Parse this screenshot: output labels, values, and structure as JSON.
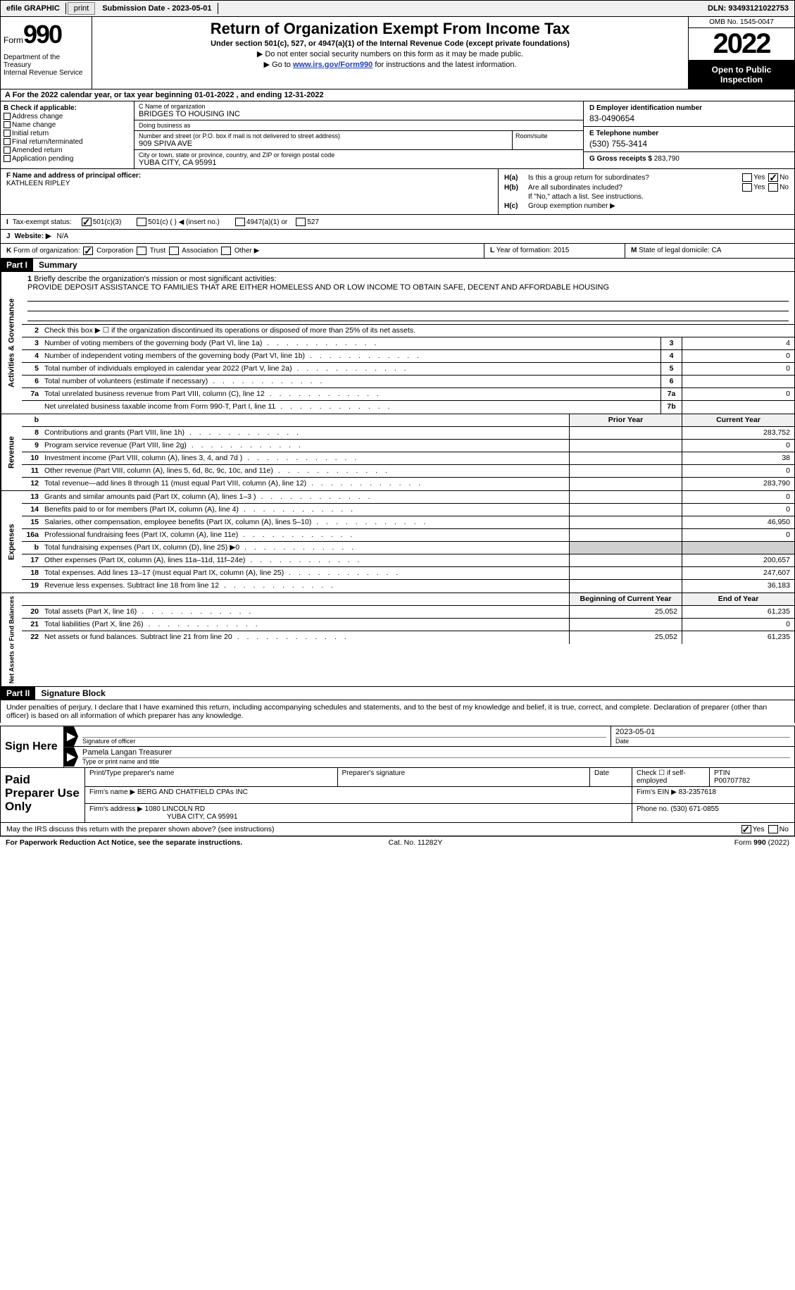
{
  "topbar": {
    "efile": "efile GRAPHIC",
    "print": "print",
    "sub_label": "Submission Date - ",
    "sub_date": "2023-05-01",
    "dln_label": "DLN: ",
    "dln": "93493121022753"
  },
  "header": {
    "form_word": "Form",
    "form_num": "990",
    "dept": "Department of the Treasury\nInternal Revenue Service",
    "title": "Return of Organization Exempt From Income Tax",
    "subtitle": "Under section 501(c), 527, or 4947(a)(1) of the Internal Revenue Code (except private foundations)",
    "line1": "Do not enter social security numbers on this form as it may be made public.",
    "line2_pre": "Go to ",
    "line2_link": "www.irs.gov/Form990",
    "line2_post": " for instructions and the latest information.",
    "omb": "OMB No. 1545-0047",
    "year": "2022",
    "open": "Open to Public Inspection"
  },
  "lineA": {
    "text_pre": "For the 2022 calendar year, or tax year beginning ",
    "begin": "01-01-2022",
    "mid": " , and ending ",
    "end": "12-31-2022"
  },
  "colB": {
    "hdr": "B Check if applicable:",
    "opts": [
      "Address change",
      "Name change",
      "Initial return",
      "Final return/terminated",
      "Amended return",
      "Application pending"
    ]
  },
  "colC": {
    "name_lbl": "C Name of organization",
    "name": "BRIDGES TO HOUSING INC",
    "dba_lbl": "Doing business as",
    "dba": "",
    "street_lbl": "Number and street (or P.O. box if mail is not delivered to street address)",
    "street": "909 SPIVA AVE",
    "room_lbl": "Room/suite",
    "city_lbl": "City or town, state or province, country, and ZIP or foreign postal code",
    "city": "YUBA CITY, CA  95991"
  },
  "colD": {
    "ein_lbl": "D Employer identification number",
    "ein": "83-0490654",
    "tel_lbl": "E Telephone number",
    "tel": "(530) 755-3414",
    "gross_lbl": "G Gross receipts $ ",
    "gross": "283,790"
  },
  "rowF": {
    "lbl": "F Name and address of principal officer:",
    "name": "KATHLEEN RIPLEY"
  },
  "rowH": {
    "a": "Is this a group return for subordinates?",
    "b": "Are all subordinates included?",
    "note": "If \"No,\" attach a list. See instructions.",
    "c": "Group exemption number ▶",
    "yes": "Yes",
    "no": "No"
  },
  "rowI": {
    "lbl": "Tax-exempt status:",
    "o1": "501(c)(3)",
    "o2": "501(c) (  ) ◀ (insert no.)",
    "o3": "4947(a)(1) or",
    "o4": "527"
  },
  "rowJ": {
    "lbl": "Website: ▶",
    "val": "N/A"
  },
  "rowK": {
    "k1": "Form of organization:",
    "opts": [
      "Corporation",
      "Trust",
      "Association",
      "Other ▶"
    ],
    "k2_lbl": "Year of formation: ",
    "k2_val": "2015",
    "k3_lbl": "State of legal domicile: ",
    "k3_val": "CA"
  },
  "part1": {
    "hdr": "Part I",
    "title": "Summary"
  },
  "mission": {
    "num": "1",
    "lbl": "Briefly describe the organization's mission or most significant activities:",
    "text": "PROVIDE DEPOSIT ASSISTANCE TO FAMILIES THAT ARE EITHER HOMELESS AND OR LOW INCOME TO OBTAIN SAFE, DECENT AND AFFORDABLE HOUSING"
  },
  "gov_lines": [
    {
      "n": "2",
      "d": "Check this box ▶ ☐ if the organization discontinued its operations or disposed of more than 25% of its net assets."
    },
    {
      "n": "3",
      "d": "Number of voting members of the governing body (Part VI, line 1a)",
      "box": "3",
      "v": "4"
    },
    {
      "n": "4",
      "d": "Number of independent voting members of the governing body (Part VI, line 1b)",
      "box": "4",
      "v": "0"
    },
    {
      "n": "5",
      "d": "Total number of individuals employed in calendar year 2022 (Part V, line 2a)",
      "box": "5",
      "v": "0"
    },
    {
      "n": "6",
      "d": "Total number of volunteers (estimate if necessary)",
      "box": "6",
      "v": ""
    },
    {
      "n": "7a",
      "d": "Total unrelated business revenue from Part VIII, column (C), line 12",
      "box": "7a",
      "v": "0"
    },
    {
      "n": "",
      "d": "Net unrelated business taxable income from Form 990-T, Part I, line 11",
      "box": "7b",
      "v": ""
    }
  ],
  "py_cy": {
    "py": "Prior Year",
    "cy": "Current Year"
  },
  "rev_lines": [
    {
      "n": "8",
      "d": "Contributions and grants (Part VIII, line 1h)",
      "py": "",
      "cy": "283,752"
    },
    {
      "n": "9",
      "d": "Program service revenue (Part VIII, line 2g)",
      "py": "",
      "cy": "0"
    },
    {
      "n": "10",
      "d": "Investment income (Part VIII, column (A), lines 3, 4, and 7d )",
      "py": "",
      "cy": "38"
    },
    {
      "n": "11",
      "d": "Other revenue (Part VIII, column (A), lines 5, 6d, 8c, 9c, 10c, and 11e)",
      "py": "",
      "cy": "0"
    },
    {
      "n": "12",
      "d": "Total revenue—add lines 8 through 11 (must equal Part VIII, column (A), line 12)",
      "py": "",
      "cy": "283,790"
    }
  ],
  "exp_lines": [
    {
      "n": "13",
      "d": "Grants and similar amounts paid (Part IX, column (A), lines 1–3 )",
      "py": "",
      "cy": "0"
    },
    {
      "n": "14",
      "d": "Benefits paid to or for members (Part IX, column (A), line 4)",
      "py": "",
      "cy": "0"
    },
    {
      "n": "15",
      "d": "Salaries, other compensation, employee benefits (Part IX, column (A), lines 5–10)",
      "py": "",
      "cy": "46,950"
    },
    {
      "n": "16a",
      "d": "Professional fundraising fees (Part IX, column (A), line 11e)",
      "py": "",
      "cy": "0"
    },
    {
      "n": "b",
      "d": "Total fundraising expenses (Part IX, column (D), line 25) ▶0",
      "py": "shade",
      "cy": "shade"
    },
    {
      "n": "17",
      "d": "Other expenses (Part IX, column (A), lines 11a–11d, 11f–24e)",
      "py": "",
      "cy": "200,657"
    },
    {
      "n": "18",
      "d": "Total expenses. Add lines 13–17 (must equal Part IX, column (A), line 25)",
      "py": "",
      "cy": "247,607"
    },
    {
      "n": "19",
      "d": "Revenue less expenses. Subtract line 18 from line 12",
      "py": "",
      "cy": "36,183"
    }
  ],
  "na_hdr": {
    "py": "Beginning of Current Year",
    "cy": "End of Year"
  },
  "na_lines": [
    {
      "n": "20",
      "d": "Total assets (Part X, line 16)",
      "py": "25,052",
      "cy": "61,235"
    },
    {
      "n": "21",
      "d": "Total liabilities (Part X, line 26)",
      "py": "",
      "cy": "0"
    },
    {
      "n": "22",
      "d": "Net assets or fund balances. Subtract line 21 from line 20",
      "py": "25,052",
      "cy": "61,235"
    }
  ],
  "side": {
    "gov": "Activities & Governance",
    "rev": "Revenue",
    "exp": "Expenses",
    "na": "Net Assets or Fund Balances"
  },
  "part2": {
    "hdr": "Part II",
    "title": "Signature Block",
    "intro": "Under penalties of perjury, I declare that I have examined this return, including accompanying schedules and statements, and to the best of my knowledge and belief, it is true, correct, and complete. Declaration of preparer (other than officer) is based on all information of which preparer has any knowledge."
  },
  "sign": {
    "here": "Sign Here",
    "sig_lbl": "Signature of officer",
    "date_lbl": "Date",
    "date": "2023-05-01",
    "name": "Pamela Langan Treasurer",
    "name_lbl": "Type or print name and title"
  },
  "prep": {
    "here": "Paid Preparer Use Only",
    "r1": {
      "c1": "Print/Type preparer's name",
      "c2": "Preparer's signature",
      "c3": "Date",
      "c4_pre": "Check ☐ if self-employed",
      "c5_lbl": "PTIN",
      "c5": "P00707782"
    },
    "r2": {
      "lbl": "Firm's name   ▶",
      "val": "BERG AND CHATFIELD CPAs INC",
      "ein_lbl": "Firm's EIN ▶",
      "ein": "83-2357618"
    },
    "r3": {
      "lbl": "Firm's address ▶",
      "val": "1080 LINCOLN RD",
      "ph_lbl": "Phone no.",
      "ph": "(530) 671-0855"
    },
    "r3b": "YUBA CITY, CA  95991"
  },
  "footer": {
    "q": "May the IRS discuss this return with the preparer shown above? (see instructions)",
    "yes": "Yes",
    "no": "No",
    "pra": "For Paperwork Reduction Act Notice, see the separate instructions.",
    "cat": "Cat. No. 11282Y",
    "form": "Form 990 (2022)"
  }
}
